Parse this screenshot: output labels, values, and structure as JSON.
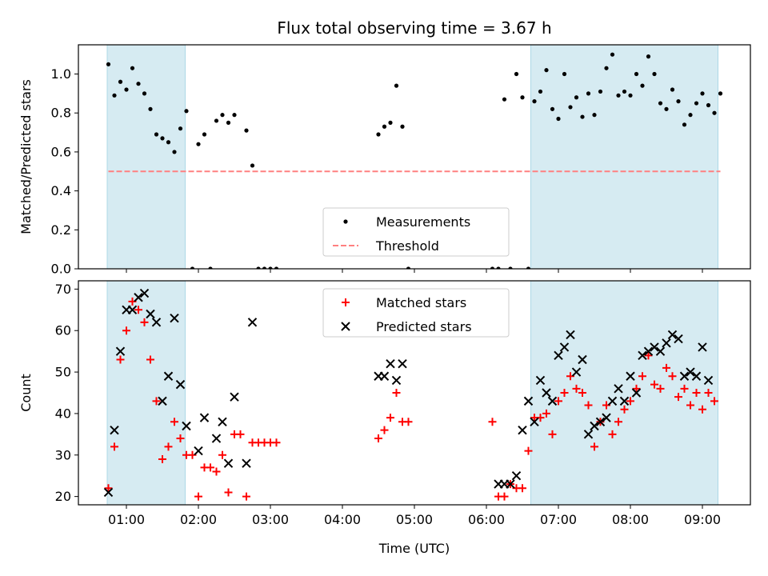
{
  "chart_data": [
    {
      "type": "scatter",
      "title": "Flux total observing time = 3.67 h",
      "xlabel": "",
      "ylabel": "Matched/Predicted stars",
      "ylim": [
        0,
        1.15
      ],
      "yticks": [
        0.0,
        0.2,
        0.4,
        0.6,
        0.8,
        1.0
      ],
      "ytick_labels": [
        "0.0",
        "0.2",
        "0.4",
        "0.6",
        "0.8",
        "1.0"
      ],
      "xlim": [
        "00:20",
        "09:40"
      ],
      "shaded_intervals": [
        [
          "00:44",
          "01:49"
        ],
        [
          "06:37",
          "09:13"
        ]
      ],
      "shade_color": "#add8e6",
      "threshold": {
        "name": "Threshold",
        "value": 0.5,
        "color": "#ff8080",
        "style": "dashed"
      },
      "legend": {
        "placement": "lower center",
        "entries": [
          "Measurements",
          "Threshold"
        ]
      },
      "series": [
        {
          "name": "Measurements",
          "marker": "dot",
          "color": "#000000",
          "points": [
            [
              "00:45",
              1.05
            ],
            [
              "00:50",
              0.89
            ],
            [
              "00:55",
              0.96
            ],
            [
              "01:00",
              0.92
            ],
            [
              "01:05",
              1.03
            ],
            [
              "01:10",
              0.95
            ],
            [
              "01:15",
              0.9
            ],
            [
              "01:20",
              0.82
            ],
            [
              "01:25",
              0.69
            ],
            [
              "01:30",
              0.67
            ],
            [
              "01:35",
              0.65
            ],
            [
              "01:40",
              0.6
            ],
            [
              "01:45",
              0.72
            ],
            [
              "01:50",
              0.81
            ],
            [
              "01:55",
              0.0
            ],
            [
              "02:00",
              0.64
            ],
            [
              "02:05",
              0.69
            ],
            [
              "02:10",
              0.0
            ],
            [
              "02:15",
              0.76
            ],
            [
              "02:20",
              0.79
            ],
            [
              "02:25",
              0.75
            ],
            [
              "02:30",
              0.79
            ],
            [
              "02:40",
              0.71
            ],
            [
              "02:45",
              0.53
            ],
            [
              "02:50",
              0.0
            ],
            [
              "02:55",
              0.0
            ],
            [
              "03:00",
              0.0
            ],
            [
              "03:05",
              0.0
            ],
            [
              "04:30",
              0.69
            ],
            [
              "04:35",
              0.73
            ],
            [
              "04:40",
              0.75
            ],
            [
              "04:45",
              0.94
            ],
            [
              "04:50",
              0.73
            ],
            [
              "04:55",
              0.0
            ],
            [
              "06:05",
              0.0
            ],
            [
              "06:10",
              0.0
            ],
            [
              "06:15",
              0.87
            ],
            [
              "06:20",
              0.0
            ],
            [
              "06:25",
              1.0
            ],
            [
              "06:30",
              0.88
            ],
            [
              "06:35",
              0.0
            ],
            [
              "06:40",
              0.86
            ],
            [
              "06:45",
              0.91
            ],
            [
              "06:50",
              1.02
            ],
            [
              "06:55",
              0.82
            ],
            [
              "07:00",
              0.77
            ],
            [
              "07:05",
              1.0
            ],
            [
              "07:10",
              0.83
            ],
            [
              "07:15",
              0.88
            ],
            [
              "07:20",
              0.78
            ],
            [
              "07:25",
              0.9
            ],
            [
              "07:30",
              0.79
            ],
            [
              "07:35",
              0.91
            ],
            [
              "07:40",
              1.03
            ],
            [
              "07:45",
              1.1
            ],
            [
              "07:50",
              0.89
            ],
            [
              "07:55",
              0.91
            ],
            [
              "08:00",
              0.89
            ],
            [
              "08:05",
              1.0
            ],
            [
              "08:10",
              0.94
            ],
            [
              "08:15",
              1.09
            ],
            [
              "08:20",
              1.0
            ],
            [
              "08:25",
              0.85
            ],
            [
              "08:30",
              0.82
            ],
            [
              "08:35",
              0.92
            ],
            [
              "08:40",
              0.86
            ],
            [
              "08:45",
              0.74
            ],
            [
              "08:50",
              0.79
            ],
            [
              "08:55",
              0.85
            ],
            [
              "09:00",
              0.9
            ],
            [
              "09:05",
              0.84
            ],
            [
              "09:10",
              0.8
            ],
            [
              "09:15",
              0.9
            ]
          ]
        }
      ]
    },
    {
      "type": "scatter",
      "xlabel": "Time (UTC)",
      "ylabel": "Count",
      "ylim": [
        18,
        72
      ],
      "yticks": [
        20,
        30,
        40,
        50,
        60,
        70
      ],
      "ytick_labels": [
        "20",
        "30",
        "40",
        "50",
        "60",
        "70"
      ],
      "xlim": [
        "00:20",
        "09:40"
      ],
      "xticks": [
        "01:00",
        "02:00",
        "03:00",
        "04:00",
        "05:00",
        "06:00",
        "07:00",
        "08:00",
        "09:00"
      ],
      "xtick_labels": [
        "01:00",
        "02:00",
        "03:00",
        "04:00",
        "05:00",
        "06:00",
        "07:00",
        "08:00",
        "09:00"
      ],
      "shaded_intervals": [
        [
          "00:44",
          "01:49"
        ],
        [
          "06:37",
          "09:13"
        ]
      ],
      "shade_color": "#add8e6",
      "legend": {
        "placement": "upper center",
        "entries": [
          "Matched stars",
          "Predicted stars"
        ]
      },
      "series": [
        {
          "name": "Matched stars",
          "marker": "plus",
          "color": "#ff0000",
          "points": [
            [
              "00:45",
              22
            ],
            [
              "00:50",
              32
            ],
            [
              "00:55",
              53
            ],
            [
              "01:00",
              60
            ],
            [
              "01:05",
              67
            ],
            [
              "01:10",
              65
            ],
            [
              "01:15",
              62
            ],
            [
              "01:20",
              53
            ],
            [
              "01:25",
              43
            ],
            [
              "01:30",
              29
            ],
            [
              "01:35",
              32
            ],
            [
              "01:40",
              38
            ],
            [
              "01:45",
              34
            ],
            [
              "01:50",
              30
            ],
            [
              "01:55",
              30
            ],
            [
              "02:00",
              20
            ],
            [
              "02:05",
              27
            ],
            [
              "02:10",
              27
            ],
            [
              "02:15",
              26
            ],
            [
              "02:20",
              30
            ],
            [
              "02:25",
              21
            ],
            [
              "02:30",
              35
            ],
            [
              "02:35",
              35
            ],
            [
              "02:40",
              20
            ],
            [
              "02:45",
              33
            ],
            [
              "02:50",
              33
            ],
            [
              "02:55",
              33
            ],
            [
              "03:00",
              33
            ],
            [
              "03:05",
              33
            ],
            [
              "04:30",
              34
            ],
            [
              "04:35",
              36
            ],
            [
              "04:40",
              39
            ],
            [
              "04:45",
              45
            ],
            [
              "04:50",
              38
            ],
            [
              "04:55",
              38
            ],
            [
              "06:05",
              38
            ],
            [
              "06:10",
              20
            ],
            [
              "06:15",
              20
            ],
            [
              "06:20",
              23
            ],
            [
              "06:25",
              22
            ],
            [
              "06:30",
              22
            ],
            [
              "06:35",
              31
            ],
            [
              "06:40",
              39
            ],
            [
              "06:45",
              39
            ],
            [
              "06:50",
              40
            ],
            [
              "06:55",
              35
            ],
            [
              "07:00",
              43
            ],
            [
              "07:05",
              45
            ],
            [
              "07:10",
              49
            ],
            [
              "07:15",
              46
            ],
            [
              "07:20",
              45
            ],
            [
              "07:25",
              42
            ],
            [
              "07:30",
              32
            ],
            [
              "07:35",
              38
            ],
            [
              "07:40",
              42
            ],
            [
              "07:45",
              35
            ],
            [
              "07:50",
              38
            ],
            [
              "07:55",
              41
            ],
            [
              "08:00",
              43
            ],
            [
              "08:05",
              46
            ],
            [
              "08:10",
              49
            ],
            [
              "08:15",
              54
            ],
            [
              "08:20",
              47
            ],
            [
              "08:25",
              46
            ],
            [
              "08:30",
              51
            ],
            [
              "08:35",
              49
            ],
            [
              "08:40",
              44
            ],
            [
              "08:45",
              46
            ],
            [
              "08:50",
              42
            ],
            [
              "08:55",
              45
            ],
            [
              "09:00",
              41
            ],
            [
              "09:05",
              45
            ],
            [
              "09:10",
              43
            ]
          ]
        },
        {
          "name": "Predicted stars",
          "marker": "x",
          "color": "#000000",
          "points": [
            [
              "00:45",
              21
            ],
            [
              "00:50",
              36
            ],
            [
              "00:55",
              55
            ],
            [
              "01:00",
              65
            ],
            [
              "01:05",
              65
            ],
            [
              "01:10",
              68
            ],
            [
              "01:15",
              69
            ],
            [
              "01:20",
              64
            ],
            [
              "01:25",
              62
            ],
            [
              "01:30",
              43
            ],
            [
              "01:35",
              49
            ],
            [
              "01:40",
              63
            ],
            [
              "01:45",
              47
            ],
            [
              "01:50",
              37
            ],
            [
              "02:00",
              31
            ],
            [
              "02:05",
              39
            ],
            [
              "02:15",
              34
            ],
            [
              "02:20",
              38
            ],
            [
              "02:25",
              28
            ],
            [
              "02:30",
              44
            ],
            [
              "02:40",
              28
            ],
            [
              "02:45",
              62
            ],
            [
              "04:30",
              49
            ],
            [
              "04:35",
              49
            ],
            [
              "04:40",
              52
            ],
            [
              "04:45",
              48
            ],
            [
              "04:50",
              52
            ],
            [
              "06:10",
              23
            ],
            [
              "06:15",
              23
            ],
            [
              "06:20",
              23
            ],
            [
              "06:25",
              25
            ],
            [
              "06:30",
              36
            ],
            [
              "06:35",
              43
            ],
            [
              "06:40",
              38
            ],
            [
              "06:45",
              48
            ],
            [
              "06:50",
              45
            ],
            [
              "06:55",
              43
            ],
            [
              "07:00",
              54
            ],
            [
              "07:05",
              56
            ],
            [
              "07:10",
              59
            ],
            [
              "07:15",
              50
            ],
            [
              "07:20",
              53
            ],
            [
              "07:25",
              35
            ],
            [
              "07:30",
              37
            ],
            [
              "07:35",
              38
            ],
            [
              "07:40",
              39
            ],
            [
              "07:45",
              43
            ],
            [
              "07:50",
              46
            ],
            [
              "07:55",
              43
            ],
            [
              "08:00",
              49
            ],
            [
              "08:05",
              45
            ],
            [
              "08:10",
              54
            ],
            [
              "08:15",
              55
            ],
            [
              "08:20",
              56
            ],
            [
              "08:25",
              55
            ],
            [
              "08:30",
              57
            ],
            [
              "08:35",
              59
            ],
            [
              "08:40",
              58
            ],
            [
              "08:45",
              49
            ],
            [
              "08:50",
              50
            ],
            [
              "08:55",
              49
            ],
            [
              "09:00",
              56
            ],
            [
              "09:05",
              48
            ]
          ]
        }
      ]
    }
  ]
}
